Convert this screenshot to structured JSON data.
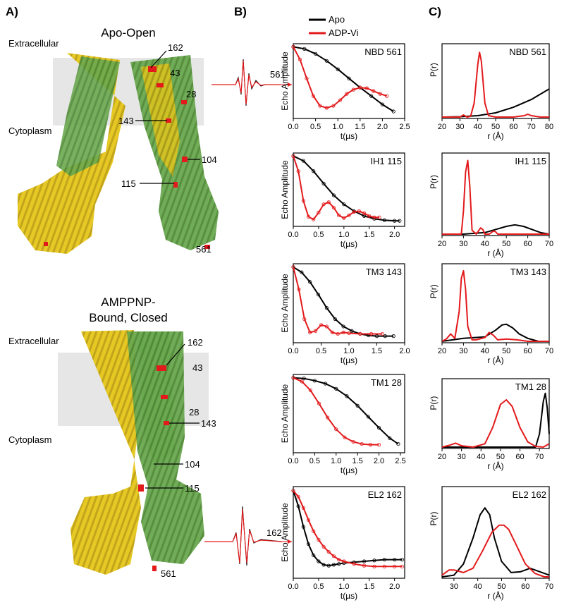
{
  "panel_labels": {
    "a": "A)",
    "b": "B)",
    "c": "C)"
  },
  "structures": {
    "apo": {
      "title": "Apo-Open",
      "extracellular": "Extracellular",
      "cytoplasm": "Cytoplasm",
      "residues": [
        "162",
        "43",
        "28",
        "143",
        "104",
        "115",
        "561"
      ]
    },
    "amppnp": {
      "title_line1": "AMPPNP-",
      "title_line2": "Bound, Closed",
      "extracellular": "Extracellular",
      "cytoplasm": "Cytoplasm",
      "residues": [
        "162",
        "43",
        "28",
        "143",
        "104",
        "115",
        "561"
      ]
    }
  },
  "cw_spectra": [
    {
      "label": "561"
    },
    {
      "label": "162"
    }
  ],
  "colors": {
    "apo": "#000000",
    "adpvi": "#e31a1c",
    "helix_green": "#6aa84f",
    "helix_yellow": "#e6c619",
    "membrane": "#e6e6e6"
  },
  "chart_data": [
    {
      "type": "line",
      "panel": "B",
      "title": "NBD 561",
      "xlabel": "t(µs)",
      "ylabel": "Echo Amplitude",
      "xlim": [
        0,
        2.5
      ],
      "xticks": [
        "0.0",
        "0.5",
        "1.0",
        "1.5",
        "2.0",
        "2.5"
      ],
      "series": [
        {
          "name": "Apo",
          "x": [
            0,
            0.25,
            0.5,
            0.75,
            1.0,
            1.25,
            1.5,
            1.75,
            2.0,
            2.25
          ],
          "y": [
            1.0,
            0.97,
            0.9,
            0.8,
            0.68,
            0.55,
            0.42,
            0.3,
            0.18,
            0.08
          ]
        },
        {
          "name": "ADP-Vi",
          "x": [
            0,
            0.15,
            0.3,
            0.45,
            0.6,
            0.75,
            0.9,
            1.05,
            1.2,
            1.35,
            1.5,
            1.65,
            1.8,
            1.95,
            2.1
          ],
          "y": [
            1.0,
            0.82,
            0.55,
            0.3,
            0.16,
            0.13,
            0.16,
            0.24,
            0.33,
            0.39,
            0.42,
            0.41,
            0.37,
            0.33,
            0.3
          ]
        }
      ]
    },
    {
      "type": "line",
      "panel": "B",
      "title": "IH1 115",
      "xlabel": "t(µs)",
      "ylabel": "Echo Amplitude",
      "xlim": [
        0,
        2.2
      ],
      "xticks": [
        "0.0",
        "0.5",
        "1.0",
        "1.5",
        "2.0"
      ],
      "series": [
        {
          "name": "Apo",
          "x": [
            0,
            0.2,
            0.4,
            0.6,
            0.8,
            1.0,
            1.2,
            1.4,
            1.6,
            1.8,
            2.0,
            2.1
          ],
          "y": [
            1.0,
            0.93,
            0.78,
            0.6,
            0.43,
            0.3,
            0.2,
            0.13,
            0.09,
            0.07,
            0.06,
            0.06
          ]
        },
        {
          "name": "ADP-Vi",
          "x": [
            0,
            0.1,
            0.2,
            0.3,
            0.4,
            0.5,
            0.6,
            0.7,
            0.8,
            0.9,
            1.0,
            1.1,
            1.2,
            1.3,
            1.4,
            1.5,
            1.6,
            1.7
          ],
          "y": [
            1.0,
            0.78,
            0.35,
            0.12,
            0.08,
            0.18,
            0.3,
            0.33,
            0.25,
            0.14,
            0.1,
            0.14,
            0.19,
            0.2,
            0.17,
            0.13,
            0.11,
            0.11
          ]
        }
      ]
    },
    {
      "type": "line",
      "panel": "B",
      "title": "TM3 143",
      "xlabel": "t(µs)",
      "ylabel": "Echo Amplitude",
      "xlim": [
        0,
        2.0
      ],
      "xticks": [
        "0.0",
        "0.5",
        "1.0",
        "1.5",
        "2.0"
      ],
      "series": [
        {
          "name": "Apo",
          "x": [
            0,
            0.15,
            0.3,
            0.45,
            0.6,
            0.75,
            0.9,
            1.05,
            1.2,
            1.35,
            1.5,
            1.65,
            1.8
          ],
          "y": [
            1.0,
            0.93,
            0.8,
            0.63,
            0.45,
            0.3,
            0.2,
            0.14,
            0.1,
            0.08,
            0.07,
            0.07,
            0.07
          ]
        },
        {
          "name": "ADP-Vi",
          "x": [
            0,
            0.1,
            0.2,
            0.3,
            0.4,
            0.5,
            0.6,
            0.7,
            0.8,
            0.9,
            1.0,
            1.2,
            1.4,
            1.6
          ],
          "y": [
            1.0,
            0.7,
            0.3,
            0.12,
            0.14,
            0.22,
            0.2,
            0.12,
            0.1,
            0.12,
            0.11,
            0.1,
            0.1,
            0.1
          ]
        }
      ]
    },
    {
      "type": "line",
      "panel": "B",
      "title": "TM1 28",
      "xlabel": "t(µs)",
      "ylabel": "Echo Amplitude",
      "xlim": [
        0,
        2.6
      ],
      "xticks": [
        "0.0",
        "0.5",
        "1.0",
        "1.5",
        "2.0",
        "2.5"
      ],
      "series": [
        {
          "name": "Apo",
          "x": [
            0,
            0.25,
            0.5,
            0.75,
            1.0,
            1.25,
            1.5,
            1.75,
            2.0,
            2.25,
            2.45
          ],
          "y": [
            1.0,
            0.99,
            0.96,
            0.92,
            0.85,
            0.75,
            0.62,
            0.47,
            0.32,
            0.18,
            0.1
          ]
        },
        {
          "name": "ADP-Vi",
          "x": [
            0,
            0.2,
            0.4,
            0.6,
            0.8,
            1.0,
            1.2,
            1.4,
            1.6,
            1.8,
            2.0
          ],
          "y": [
            1.0,
            0.95,
            0.83,
            0.65,
            0.46,
            0.3,
            0.19,
            0.13,
            0.1,
            0.09,
            0.09
          ]
        }
      ]
    },
    {
      "type": "line",
      "panel": "B",
      "title": "EL2 162",
      "xlabel": "t(µs)",
      "ylabel": "Echo Amplitude",
      "xlim": [
        0,
        2.2
      ],
      "xticks": [
        "0.0",
        "0.5",
        "1.0",
        "1.5",
        "2.0"
      ],
      "series": [
        {
          "name": "Apo",
          "x": [
            0,
            0.1,
            0.2,
            0.3,
            0.4,
            0.5,
            0.6,
            0.7,
            0.8,
            0.9,
            1.0,
            1.2,
            1.4,
            1.6,
            1.8,
            2.0,
            2.15
          ],
          "y": [
            1.0,
            0.82,
            0.58,
            0.38,
            0.25,
            0.18,
            0.14,
            0.13,
            0.14,
            0.15,
            0.16,
            0.17,
            0.18,
            0.19,
            0.2,
            0.2,
            0.2
          ]
        },
        {
          "name": "ADP-Vi",
          "x": [
            0,
            0.1,
            0.2,
            0.3,
            0.4,
            0.5,
            0.6,
            0.7,
            0.8,
            0.9,
            1.0,
            1.2,
            1.4,
            1.6,
            1.8,
            2.0,
            2.15
          ],
          "y": [
            1.0,
            0.93,
            0.8,
            0.66,
            0.53,
            0.43,
            0.35,
            0.29,
            0.24,
            0.2,
            0.18,
            0.15,
            0.13,
            0.12,
            0.12,
            0.12,
            0.12
          ]
        }
      ]
    },
    {
      "type": "line",
      "panel": "C",
      "title": "NBD 561",
      "xlabel": "r (Å)",
      "ylabel": "P(r)",
      "xlim": [
        20,
        80
      ],
      "xticks": [
        "20",
        "30",
        "40",
        "50",
        "60",
        "70",
        "80"
      ],
      "series": [
        {
          "name": "Apo",
          "x": [
            20,
            30,
            40,
            50,
            60,
            70,
            80
          ],
          "y": [
            0,
            0.005,
            0.02,
            0.06,
            0.14,
            0.25,
            0.4
          ]
        },
        {
          "name": "ADP-Vi",
          "x": [
            20,
            30,
            32,
            34,
            36,
            38,
            40,
            41,
            42,
            44,
            46,
            50,
            60,
            66,
            68,
            70,
            75,
            80
          ],
          "y": [
            0,
            0,
            0.03,
            0,
            0.01,
            0.2,
            0.75,
            0.92,
            0.8,
            0.2,
            0.02,
            0,
            0,
            0.02,
            0.04,
            0.02,
            0,
            0
          ]
        }
      ]
    },
    {
      "type": "line",
      "panel": "C",
      "title": "IH1 115",
      "xlabel": "r (Å)",
      "ylabel": "P(r)",
      "xlim": [
        20,
        70
      ],
      "xticks": [
        "20",
        "30",
        "40",
        "50",
        "60",
        "70"
      ],
      "series": [
        {
          "name": "Apo",
          "x": [
            20,
            30,
            40,
            45,
            50,
            54,
            58,
            62,
            66,
            70
          ],
          "y": [
            0,
            0,
            0.02,
            0.06,
            0.1,
            0.12,
            0.1,
            0.06,
            0.02,
            0
          ]
        },
        {
          "name": "ADP-Vi",
          "x": [
            20,
            29,
            30,
            31,
            32,
            33,
            34,
            36,
            38,
            39,
            40,
            42,
            44,
            45,
            46,
            50,
            70
          ],
          "y": [
            0,
            0,
            0.3,
            0.8,
            0.95,
            0.6,
            0.05,
            0,
            0.08,
            0.06,
            0,
            0,
            0.04,
            0.03,
            0,
            0,
            0
          ]
        }
      ]
    },
    {
      "type": "line",
      "panel": "C",
      "title": "TM3 143",
      "xlabel": "r (Å)",
      "ylabel": "P(r)",
      "xlim": [
        20,
        70
      ],
      "xticks": [
        "20",
        "30",
        "40",
        "50",
        "60",
        "70"
      ],
      "series": [
        {
          "name": "Apo",
          "x": [
            20,
            25,
            30,
            35,
            40,
            45,
            48,
            50,
            53,
            56,
            60,
            65,
            70
          ],
          "y": [
            0,
            0.02,
            0.04,
            0.05,
            0.06,
            0.15,
            0.22,
            0.23,
            0.18,
            0.1,
            0.04,
            0,
            0
          ]
        },
        {
          "name": "ADP-Vi",
          "x": [
            20,
            22,
            24,
            26,
            28,
            29,
            30,
            31,
            32,
            34,
            36,
            40,
            42,
            44,
            46,
            50,
            55,
            60,
            70
          ],
          "y": [
            0,
            0.03,
            0.1,
            0.04,
            0.4,
            0.85,
            0.95,
            0.7,
            0.2,
            0.02,
            0.02,
            0.05,
            0.12,
            0.08,
            0.02,
            0.03,
            0.02,
            0,
            0
          ]
        }
      ]
    },
    {
      "type": "line",
      "panel": "C",
      "title": "TM1 28",
      "xlabel": "r (Å)",
      "ylabel": "P(r)",
      "xlim": [
        20,
        75
      ],
      "xticks": [
        "20",
        "30",
        "40",
        "50",
        "60",
        "70"
      ],
      "series": [
        {
          "name": "Apo",
          "x": [
            20,
            60,
            68,
            70,
            72,
            73,
            74,
            75
          ],
          "y": [
            0,
            0,
            0,
            0.2,
            0.7,
            0.82,
            0.6,
            0.2
          ]
        },
        {
          "name": "ADP-Vi",
          "x": [
            20,
            24,
            27,
            30,
            36,
            42,
            46,
            50,
            53,
            56,
            60,
            64,
            68,
            72,
            75
          ],
          "y": [
            0,
            0.03,
            0.06,
            0.02,
            0,
            0.05,
            0.3,
            0.65,
            0.72,
            0.62,
            0.3,
            0.08,
            0.01,
            0,
            0.05
          ]
        }
      ]
    },
    {
      "type": "line",
      "panel": "C",
      "title": "EL2 162",
      "xlabel": "r (Å)",
      "ylabel": "P(r)",
      "xlim": [
        25,
        70
      ],
      "xticks": [
        "30",
        "40",
        "50",
        "60",
        "70"
      ],
      "series": [
        {
          "name": "Apo",
          "x": [
            25,
            30,
            34,
            38,
            41,
            43,
            45,
            47,
            50,
            54,
            58,
            62,
            66,
            70
          ],
          "y": [
            0,
            0.02,
            0.15,
            0.45,
            0.72,
            0.8,
            0.72,
            0.45,
            0.18,
            0.05,
            0.06,
            0.1,
            0.06,
            0.02
          ]
        },
        {
          "name": "ADP-Vi",
          "x": [
            25,
            28,
            30,
            34,
            38,
            42,
            46,
            49,
            51,
            53,
            56,
            60,
            64,
            68,
            70
          ],
          "y": [
            0.02,
            0.08,
            0.08,
            0.05,
            0.1,
            0.3,
            0.52,
            0.6,
            0.6,
            0.55,
            0.38,
            0.15,
            0.04,
            0,
            0
          ]
        }
      ]
    }
  ],
  "legend": [
    {
      "name": "Apo",
      "color": "#000000"
    },
    {
      "name": "ADP-Vi",
      "color": "#e31a1c"
    }
  ]
}
